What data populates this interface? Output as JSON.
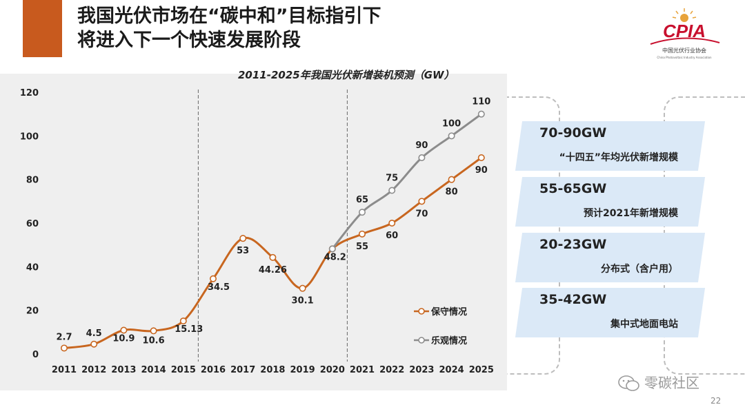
{
  "slide": {
    "title_line1": "我国光伏市场在“碳中和”目标指引下",
    "title_line2": "将进入下一个快速发展阶段",
    "page_number": "22",
    "watermark": "零碳社区"
  },
  "logo": {
    "text": "CPIA",
    "subtitle": "中国光伏行业协会",
    "tiny": "China Photovoltaic Industry Association",
    "color": "#c8102e"
  },
  "cards": [
    {
      "big": "70-90GW",
      "small": "“十四五”年均光伏新增规模"
    },
    {
      "big": "55-65GW",
      "small": "预计2021年新增规模"
    },
    {
      "big": "20-23GW",
      "small": "分布式（含户用）"
    },
    {
      "big": "35-42GW",
      "small": "集中式地面电站"
    }
  ],
  "colors": {
    "accent": "#c85a1e",
    "conservative": "#c8661f",
    "optimistic": "#8c8c8c",
    "card_bg": "#dbe9f7"
  },
  "chart_data": {
    "type": "line",
    "title": "2011-2025年我国光伏新增装机预测（GW）",
    "x": [
      "2011",
      "2012",
      "2013",
      "2014",
      "2015",
      "2016",
      "2017",
      "2018",
      "2019",
      "2020",
      "2021",
      "2022",
      "2023",
      "2024",
      "2025"
    ],
    "ylim": [
      0,
      120
    ],
    "yticks": [
      0,
      20,
      40,
      60,
      80,
      100,
      120
    ],
    "grid": false,
    "legend_position": "bottom-right",
    "series": [
      {
        "name": "保守情况",
        "color": "#c8661f",
        "x": [
          "2011",
          "2012",
          "2013",
          "2014",
          "2015",
          "2016",
          "2017",
          "2018",
          "2019",
          "2020",
          "2021",
          "2022",
          "2023",
          "2024",
          "2025"
        ],
        "values": [
          2.7,
          4.5,
          10.9,
          10.6,
          15.13,
          34.5,
          53,
          44.26,
          30.1,
          48.2,
          55,
          60,
          70,
          80,
          90
        ],
        "labels": [
          "2.7",
          "4.5",
          "10.9",
          "10.6",
          "15.13",
          "34.5",
          "53",
          "44.26",
          "30.1",
          "48.2",
          "55",
          "60",
          "70",
          "80",
          "90"
        ]
      },
      {
        "name": "乐观情况",
        "color": "#8c8c8c",
        "x": [
          "2020",
          "2021",
          "2022",
          "2023",
          "2024",
          "2025"
        ],
        "values": [
          48.2,
          65,
          75,
          90,
          100,
          110
        ],
        "labels": [
          "",
          "65",
          "75",
          "90",
          "100",
          "110"
        ]
      }
    ],
    "dividers": [
      "2015-2016",
      "2020-2021"
    ]
  }
}
